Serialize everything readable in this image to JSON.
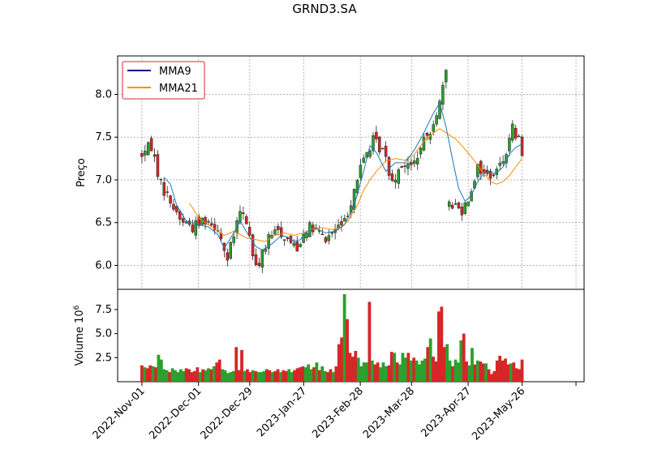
{
  "chart_data": {
    "type": "candlestick",
    "title": "GRND3.SA",
    "price_panel": {
      "ylabel": "Preço",
      "ylim": [
        5.72,
        8.45
      ],
      "yticks": [
        6.0,
        6.5,
        7.0,
        7.5,
        8.0
      ],
      "ytick_labels": [
        "6.0",
        "6.5",
        "7.0",
        "7.5",
        "8.0"
      ],
      "grid": true,
      "legend": {
        "position": "top-left",
        "entries": [
          {
            "name": "MMA9",
            "color": "#00008b"
          },
          {
            "name": "MMA21",
            "color": "#ff8c00"
          }
        ]
      },
      "anchors": [
        [
          0,
          7.3
        ],
        [
          3,
          7.4
        ],
        [
          6,
          6.95
        ],
        [
          9,
          6.75
        ],
        [
          12,
          6.55
        ],
        [
          16,
          6.45
        ],
        [
          20,
          6.55
        ],
        [
          24,
          6.45
        ],
        [
          27,
          6.05
        ],
        [
          29,
          6.35
        ],
        [
          31,
          6.62
        ],
        [
          33,
          6.52
        ],
        [
          36,
          5.95
        ],
        [
          38,
          6.15
        ],
        [
          40,
          6.3
        ],
        [
          43,
          6.42
        ],
        [
          46,
          6.3
        ],
        [
          49,
          6.22
        ],
        [
          52,
          6.45
        ],
        [
          55,
          6.4
        ],
        [
          58,
          6.3
        ],
        [
          61,
          6.42
        ],
        [
          64,
          6.5
        ],
        [
          67,
          6.9
        ],
        [
          70,
          7.25
        ],
        [
          73,
          7.45
        ],
        [
          76,
          7.35
        ],
        [
          79,
          7.0
        ],
        [
          82,
          7.2
        ],
        [
          85,
          7.15
        ],
        [
          88,
          7.35
        ],
        [
          91,
          7.6
        ],
        [
          94,
          7.9
        ],
        [
          96,
          8.22
        ],
        [
          97,
          6.75
        ],
        [
          99,
          6.7
        ],
        [
          101,
          6.65
        ],
        [
          103,
          6.8
        ],
        [
          106,
          7.15
        ],
        [
          109,
          7.05
        ],
        [
          112,
          7.1
        ],
        [
          115,
          7.35
        ],
        [
          117,
          7.6
        ],
        [
          119,
          7.45
        ],
        [
          120,
          7.35
        ]
      ],
      "ma9": [
        [
          7,
          7.03
        ],
        [
          9,
          6.95
        ],
        [
          11,
          6.7
        ],
        [
          14,
          6.52
        ],
        [
          17,
          6.48
        ],
        [
          21,
          6.45
        ],
        [
          24,
          6.36
        ],
        [
          26,
          6.2
        ],
        [
          29,
          6.38
        ],
        [
          31,
          6.52
        ],
        [
          34,
          6.33
        ],
        [
          36,
          6.22
        ],
        [
          38,
          6.18
        ],
        [
          41,
          6.25
        ],
        [
          44,
          6.35
        ],
        [
          46,
          6.33
        ],
        [
          48,
          6.28
        ],
        [
          50,
          6.3
        ],
        [
          52,
          6.4
        ],
        [
          55,
          6.43
        ],
        [
          58,
          6.38
        ],
        [
          61,
          6.4
        ],
        [
          64,
          6.48
        ],
        [
          67,
          6.7
        ],
        [
          70,
          7.1
        ],
        [
          72,
          7.4
        ],
        [
          74,
          7.32
        ],
        [
          77,
          7.1
        ],
        [
          80,
          7.2
        ],
        [
          83,
          7.2
        ],
        [
          86,
          7.35
        ],
        [
          89,
          7.55
        ],
        [
          92,
          7.78
        ],
        [
          94,
          7.9
        ],
        [
          96,
          7.62
        ],
        [
          98,
          7.25
        ],
        [
          100,
          6.9
        ],
        [
          102,
          6.75
        ],
        [
          104,
          6.82
        ],
        [
          106,
          6.98
        ],
        [
          108,
          7.08
        ],
        [
          110,
          7.08
        ],
        [
          112,
          7.08
        ],
        [
          114,
          7.15
        ],
        [
          116,
          7.3
        ],
        [
          118,
          7.38
        ],
        [
          120,
          7.42
        ]
      ],
      "ma21": [
        [
          15,
          6.73
        ],
        [
          18,
          6.55
        ],
        [
          22,
          6.45
        ],
        [
          26,
          6.35
        ],
        [
          29,
          6.4
        ],
        [
          33,
          6.32
        ],
        [
          36,
          6.3
        ],
        [
          39,
          6.28
        ],
        [
          42,
          6.35
        ],
        [
          45,
          6.38
        ],
        [
          48,
          6.35
        ],
        [
          51,
          6.38
        ],
        [
          54,
          6.43
        ],
        [
          57,
          6.44
        ],
        [
          60,
          6.42
        ],
        [
          63,
          6.44
        ],
        [
          65,
          6.52
        ],
        [
          68,
          6.7
        ],
        [
          70,
          6.88
        ],
        [
          72,
          7.0
        ],
        [
          74,
          7.1
        ],
        [
          77,
          7.22
        ],
        [
          80,
          7.25
        ],
        [
          83,
          7.23
        ],
        [
          86,
          7.3
        ],
        [
          89,
          7.45
        ],
        [
          92,
          7.55
        ],
        [
          94,
          7.6
        ],
        [
          96,
          7.55
        ],
        [
          99,
          7.48
        ],
        [
          101,
          7.4
        ],
        [
          104,
          7.27
        ],
        [
          107,
          7.12
        ],
        [
          110,
          6.98
        ],
        [
          112,
          6.95
        ],
        [
          114,
          6.98
        ],
        [
          116,
          7.05
        ],
        [
          118,
          7.15
        ],
        [
          120,
          7.25
        ]
      ]
    },
    "volume_panel": {
      "ylabel": "Volume  10",
      "exponent": "6",
      "ylim": [
        0,
        9.6
      ],
      "yticks": [
        2.5,
        5.0,
        7.5
      ],
      "ytick_labels": [
        "2.5",
        "5.0",
        "7.5"
      ],
      "values": [
        1.7,
        1.5,
        1.4,
        1.7,
        1.6,
        1.5,
        2.8,
        2.3,
        1.3,
        1.2,
        1.0,
        1.4,
        1.2,
        1.0,
        1.3,
        1.1,
        1.4,
        1.3,
        1.0,
        1.1,
        1.5,
        1.0,
        1.3,
        1.2,
        1.4,
        1.3,
        1.6,
        2.0,
        2.3,
        1.3,
        1.2,
        0.9,
        1.0,
        1.1,
        3.6,
        1.2,
        3.3,
        1.1,
        1.3,
        1.0,
        1.2,
        1.1,
        1.0,
        1.0,
        1.1,
        1.3,
        1.2,
        1.0,
        1.1,
        1.3,
        1.0,
        1.2,
        1.1,
        1.3,
        1.0,
        1.2,
        1.4,
        1.5,
        1.6,
        1.5,
        1.8,
        1.3,
        1.5,
        2.0,
        1.2,
        1.6,
        1.1,
        1.0,
        1.3,
        1.0,
        1.6,
        3.9,
        4.6,
        9.1,
        6.5,
        3.0,
        2.6,
        3.2,
        2.5,
        1.6,
        2.0,
        2.0,
        8.3,
        2.2,
        1.8,
        2.0,
        1.5,
        2.0,
        1.6,
        1.7,
        3.1,
        3.0,
        2.0,
        1.8,
        3.0,
        2.5,
        3.0,
        2.2,
        2.5,
        2.2,
        1.8,
        2.2,
        2.4,
        3.6,
        4.5,
        2.6,
        2.1,
        7.3,
        7.8,
        3.6,
        3.9,
        2.2,
        1.6,
        2.3,
        2.0,
        4.3,
        5.0,
        2.1,
        1.7,
        3.5,
        1.8,
        2.2,
        2.1,
        1.9,
        1.9,
        1.3,
        0.8,
        1.1,
        2.2,
        2.7,
        2.2,
        2.4,
        1.8,
        1.9,
        2.0,
        1.4,
        1.3,
        2.3
      ]
    },
    "xaxis": {
      "tick_labels": [
        "2022-Nov-01",
        "2022-Dec-01",
        "2022-Dec-29",
        "2023-Jan-27",
        "2023-Feb-28",
        "2023-Mar-28",
        "2023-Apr-27",
        "2023-May-26"
      ],
      "tick_indices": [
        0,
        21,
        40,
        60,
        81,
        100,
        121,
        141
      ],
      "extra_tick_index": 161,
      "xlim": [
        -9,
        164
      ]
    },
    "colors": {
      "up": "#2ca02c",
      "down": "#d62728",
      "vol_up": "#2ca02c",
      "vol_down": "#d62728",
      "ma9_line": "#1f77b4",
      "ma21_line": "#ff8c00",
      "grid": "#888888"
    }
  }
}
